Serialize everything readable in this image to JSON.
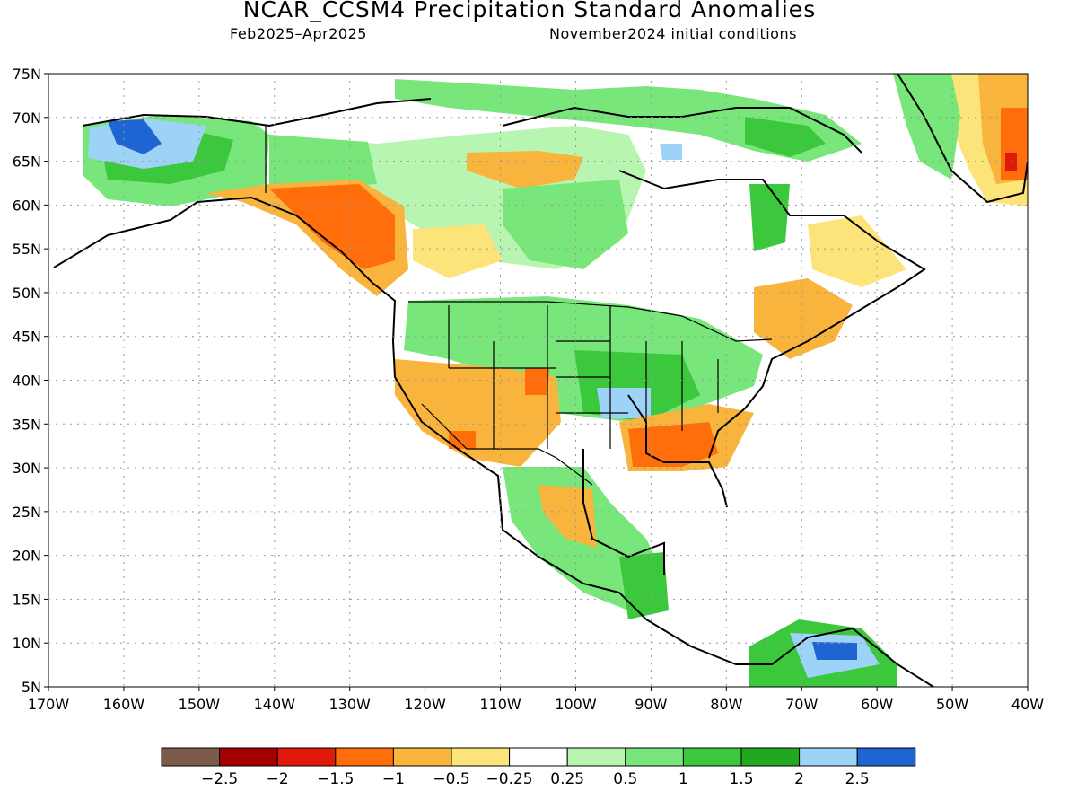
{
  "map": {
    "title": "NCAR_CCSM4 Precipitation Standard Anomalies",
    "period": "Feb2025–Apr2025",
    "initial_conditions": "November2024 initial conditions",
    "lat_labels": [
      "75N",
      "70N",
      "65N",
      "60N",
      "55N",
      "50N",
      "45N",
      "40N",
      "35N",
      "30N",
      "25N",
      "20N",
      "15N",
      "10N",
      "5N"
    ],
    "lon_labels": [
      "170W",
      "160W",
      "150W",
      "140W",
      "130W",
      "120W",
      "110W",
      "100W",
      "90W",
      "80W",
      "70W",
      "60W",
      "50W",
      "40W"
    ],
    "extent": {
      "lon": [
        -170,
        -40
      ],
      "lat": [
        5,
        75
      ]
    }
  },
  "legend": {
    "colors": [
      "#7d5a4a",
      "#a50000",
      "#e01a0a",
      "#ff6e0a",
      "#f8b43c",
      "#fde47a",
      "#ffffff",
      "#b8f5b0",
      "#78e67a",
      "#3cc83c",
      "#20a81e",
      "#9dd3f7",
      "#1e64d2"
    ],
    "labels": [
      "−2.5",
      "−2",
      "−1.5",
      "−1",
      "−0.5",
      "−0.25",
      "0.25",
      "0.5",
      "1",
      "1.5",
      "2",
      "2.5"
    ]
  }
}
